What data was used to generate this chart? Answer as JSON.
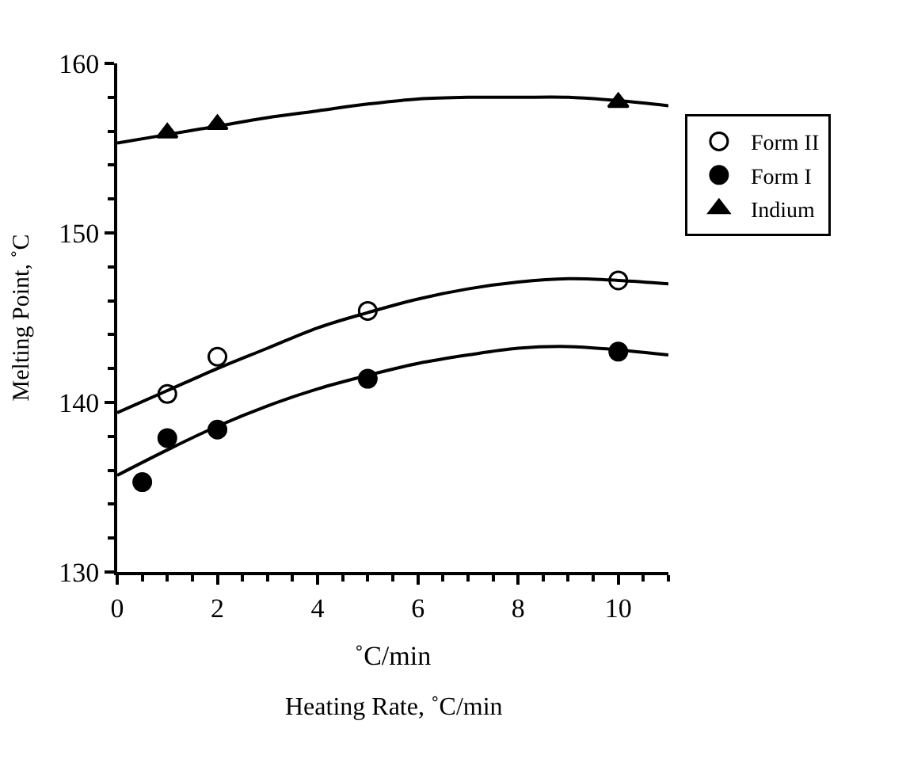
{
  "chart_data": {
    "type": "scatter",
    "xlabel": "˚C/min",
    "ylabel": "Melting Point, ˚C",
    "annotations": [
      "Heating Rate, ˚C/min"
    ],
    "xlim": [
      0,
      11
    ],
    "xticks": [
      0,
      2,
      4,
      6,
      8,
      10
    ],
    "ylim": [
      130,
      160
    ],
    "yticks": [
      130,
      140,
      150,
      160
    ],
    "legend": "right",
    "series": [
      {
        "name": "Form II",
        "color": "#ffffff",
        "marker": "circle",
        "x": [
          1,
          2,
          5,
          10
        ],
        "values": [
          140.5,
          142.7,
          145.4,
          147.2
        ]
      },
      {
        "name": "Form I",
        "color": "#000000",
        "marker": "circle",
        "x": [
          0.5,
          1,
          2,
          5,
          10
        ],
        "values": [
          135.3,
          137.9,
          138.4,
          141.4,
          143.0
        ]
      },
      {
        "name": "Indium",
        "color": "#000000",
        "marker": "triangle",
        "x": [
          1,
          2,
          10
        ],
        "values": [
          155.9,
          156.4,
          157.7
        ]
      },
      {
        "type": "line",
        "color": "#000000",
        "marker": "none",
        "x": [
          0,
          1,
          2,
          3,
          4,
          5,
          6,
          7,
          8,
          9,
          10,
          11
        ],
        "values": [
          139.4,
          140.7,
          142.0,
          143.2,
          144.4,
          145.3,
          146.1,
          146.7,
          147.1,
          147.3,
          147.2,
          147.0
        ]
      },
      {
        "type": "line",
        "color": "#000000",
        "marker": "none",
        "x": [
          0,
          1,
          2,
          3,
          4,
          5,
          6,
          7,
          8,
          9,
          10,
          11
        ],
        "values": [
          135.7,
          137.2,
          138.6,
          139.8,
          140.8,
          141.6,
          142.3,
          142.8,
          143.2,
          143.3,
          143.1,
          142.8
        ]
      },
      {
        "type": "line",
        "color": "#000000",
        "marker": "none",
        "x": [
          0,
          1,
          2,
          3,
          4,
          5,
          6,
          7,
          8,
          9,
          10,
          11
        ],
        "values": [
          155.3,
          155.8,
          156.3,
          156.8,
          157.2,
          157.6,
          157.9,
          158.0,
          158.0,
          158.0,
          157.8,
          157.5
        ]
      }
    ]
  }
}
